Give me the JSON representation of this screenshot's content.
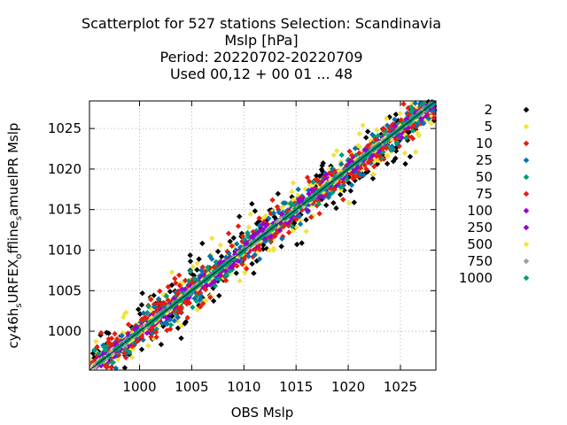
{
  "chart_data": {
    "type": "scatter",
    "title_lines": [
      "Scatterplot for  527 stations Selection: Scandinavia",
      "Mslp [hPa]",
      "Period: 20220702-20220709",
      "Used  00,12  + 00 01 ... 48"
    ],
    "xlabel": "OBS Mslp",
    "ylabel": "cy46h_sURFEX_offline_samuelPR Mslp",
    "xlim": [
      995.2,
      1028.4
    ],
    "ylim": [
      995.2,
      1028.4
    ],
    "x_ticks": [
      1000,
      1005,
      1010,
      1015,
      1020,
      1025
    ],
    "y_ticks": [
      1000,
      1005,
      1010,
      1015,
      1020,
      1025
    ],
    "grid": true,
    "diagonal_line": true,
    "legend_position": "right",
    "series": [
      {
        "name": "2",
        "color": "#000000",
        "spread": 2.1
      },
      {
        "name": "5",
        "color": "#f0e442",
        "spread": 1.7
      },
      {
        "name": "10",
        "color": "#e51e10",
        "spread": 1.4
      },
      {
        "name": "25",
        "color": "#0072b2",
        "spread": 1.1
      },
      {
        "name": "50",
        "color": "#009e73",
        "spread": 0.85
      },
      {
        "name": "75",
        "color": "#e51e10",
        "spread": 0.65
      },
      {
        "name": "100",
        "color": "#9400d3",
        "spread": 0.5
      },
      {
        "name": "250",
        "color": "#9400d3",
        "spread": 0.35
      },
      {
        "name": "500",
        "color": "#f0e442",
        "spread": 0.22
      },
      {
        "name": "750",
        "color": "#a0a0a0",
        "spread": 0.14
      },
      {
        "name": "1000",
        "color": "#009e73",
        "spread": 0.08
      }
    ]
  }
}
